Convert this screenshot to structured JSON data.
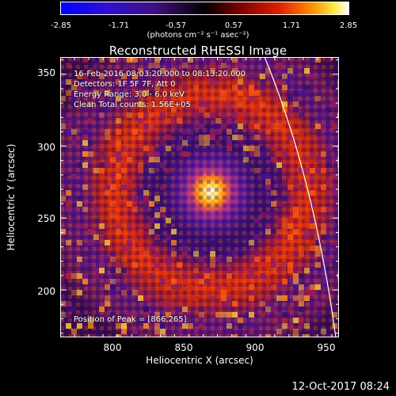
{
  "colorbar": {
    "ticks": [
      "-2.85",
      "-1.71",
      "-0.57",
      "0.57",
      "1.71",
      "2.85"
    ],
    "unit": "(photons cm⁻² s⁻¹ asec⁻²)"
  },
  "title": "Reconstructed RHESSI Image",
  "annotations": {
    "time": "16-Feb-2016 08:03:20.000 to 08:13:20.000",
    "detectors": "Detectors: 1F 5F 7F, Att 0",
    "energy": "Energy Range: 3.0 - 6.0 keV",
    "clean": "Clean     Total counts: 1.56E+05",
    "peak": "Position of Peak = [866,265]"
  },
  "axes": {
    "xlabel": "Heliocentric X (arcsec)",
    "ylabel": "Heliocentric Y (arcsec)",
    "xticks": [
      "800",
      "850",
      "900",
      "950"
    ],
    "yticks": [
      "350",
      "300",
      "250",
      "200"
    ],
    "xrange": [
      765,
      960
    ],
    "yrange": [
      167,
      362
    ]
  },
  "peak": {
    "x": 866,
    "y": 265
  },
  "footer": "12-Oct-2017 08:24",
  "colors": {
    "background": "#000000",
    "colormap": [
      "#0000ff",
      "#4000c0",
      "#300060",
      "#000000",
      "#800000",
      "#d02000",
      "#ff8000",
      "#ffff60",
      "#ffffff"
    ]
  }
}
